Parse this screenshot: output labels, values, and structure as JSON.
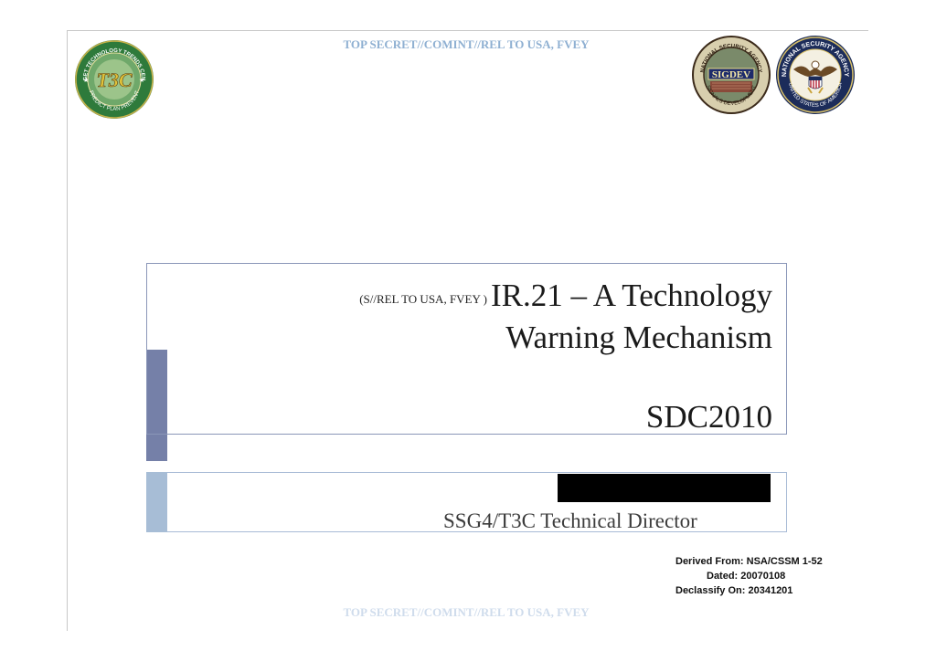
{
  "classification": {
    "top": "TOP SECRET//COMINT//REL TO USA, FVEY",
    "bottom": "TOP SECRET//COMINT//REL TO USA, FVEY"
  },
  "seals": {
    "t3c": {
      "ring_text": "TARGET TECHNOLOGY TRENDS CENTER",
      "center_text": "T3C",
      "motto": "PREDICT PLAN PREVENT",
      "icon": "t3c-seal-icon",
      "ring_color": "#2e7a3b"
    },
    "sigdev": {
      "ring_text": "NATIONAL SECURITY AGENCY",
      "bottom_text": "SIGNALS DEVELOPMENT",
      "center_text": "SIGDEV",
      "icon": "sigdev-seal-icon",
      "ring_color": "#3b2a1a"
    },
    "nsa": {
      "ring_text": "NATIONAL SECURITY AGENCY",
      "bottom_text": "UNITED STATES OF AMERICA",
      "icon": "nsa-eagle-seal-icon",
      "ring_color": "#1c2c5a"
    }
  },
  "title": {
    "prefix": "(S//REL TO USA, FVEY )",
    "line1": "IR.21 – A Technology",
    "line2": "Warning Mechanism",
    "subtitle": "SDC2010"
  },
  "author": {
    "role": "SSG4/T3C Technical Director"
  },
  "derivation": {
    "derived_from": "Derived From: NSA/CSSM 1-52",
    "dated": "Dated: 20070108",
    "declassify": "Declassify On: 20341201"
  },
  "colors": {
    "title_accent": "#7580a8",
    "author_accent": "#a7bdd6",
    "classification_text": "#8fb0d2"
  }
}
